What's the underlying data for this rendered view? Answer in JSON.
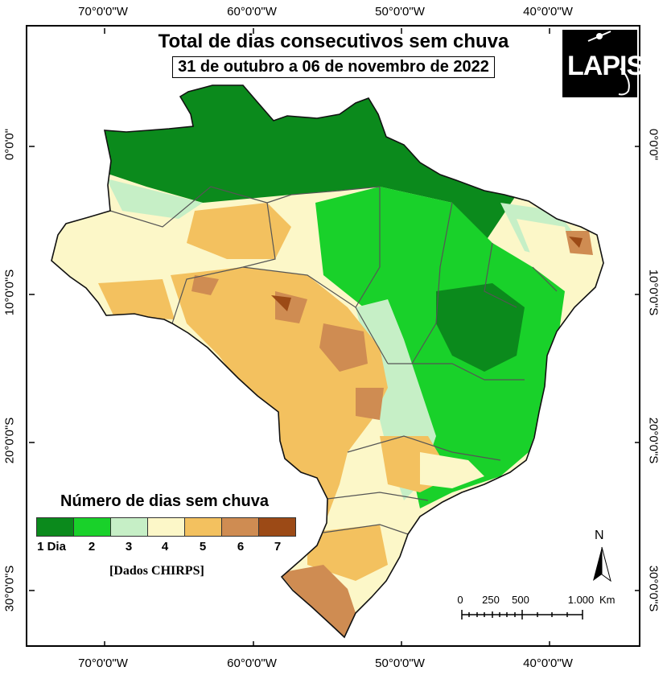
{
  "title": "Total de dias consecutivos sem chuva",
  "subtitle": "31 de outubro a 06 de novembro de 2022",
  "logo_text": "LAPIS",
  "longitude_labels": [
    "70°0'0\"W",
    "60°0'0\"W",
    "50°0'0\"W",
    "40°0'0\"W"
  ],
  "latitude_labels": [
    "0°0'0\"",
    "10°0'0\"S",
    "20°0'0\"S",
    "30°0'0\"S"
  ],
  "legend": {
    "title": "Número de dias sem chuva",
    "items": [
      {
        "label": "1 Dia",
        "color": "#0b8a1c"
      },
      {
        "label": "2",
        "color": "#19d12a"
      },
      {
        "label": "3",
        "color": "#c6efc6"
      },
      {
        "label": "4",
        "color": "#fcf7c8"
      },
      {
        "label": "5",
        "color": "#f3c15f"
      },
      {
        "label": "6",
        "color": "#cf8c52"
      },
      {
        "label": "7",
        "color": "#9c4a16"
      }
    ],
    "source": "[Dados CHIRPS]"
  },
  "north_label": "N",
  "scale_bar": {
    "labels": [
      "0",
      "250",
      "500",
      "1.000"
    ],
    "unit": "Km"
  }
}
